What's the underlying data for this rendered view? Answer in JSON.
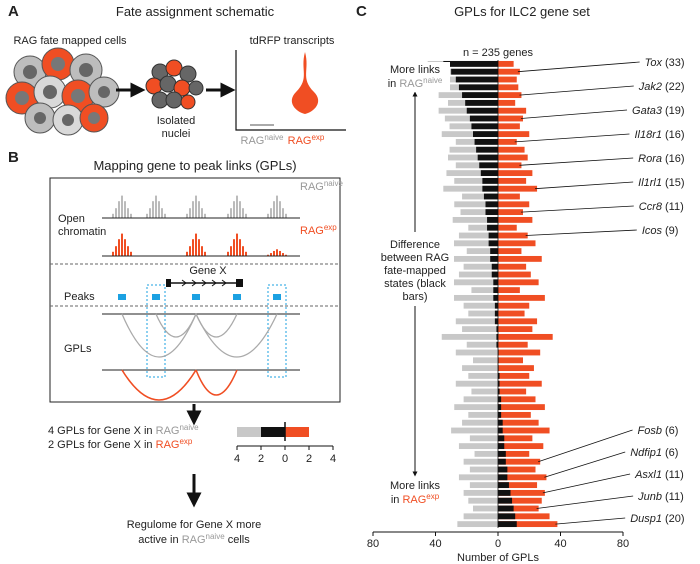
{
  "panel_a": {
    "letter": "A",
    "title": "Fate assignment schematic",
    "cells_label": "RAG fate mapped cells",
    "nuclei_label": [
      "Isolated",
      "nuclei"
    ],
    "plot_title": "tdRFP transcripts",
    "group_naive": {
      "base": "RAG",
      "sup": "naive"
    },
    "group_exp": {
      "base": "RAG",
      "sup": "exp"
    }
  },
  "panel_b": {
    "letter": "B",
    "title": "Mapping gene to peak links (GPLs)",
    "open_chromatin": [
      "Open",
      "chromatin"
    ],
    "track_naive": {
      "base": "RAG",
      "sup": "naive"
    },
    "track_exp": {
      "base": "RAG",
      "sup": "exp"
    },
    "gene": "Gene X",
    "peaks": "Peaks",
    "gpls": "GPLs",
    "summary_naive": {
      "text": "4 GPLs for Gene X in ",
      "base": "RAG",
      "sup": "naive"
    },
    "summary_exp": {
      "text": "2 GPLs for Gene X in ",
      "base": "RAG",
      "sup": "exp"
    },
    "mini_chart": {
      "naive": 4,
      "exp": 2,
      "difference": 2,
      "xlim": [
        -4,
        4
      ],
      "xticks": [
        {
          "value": -4,
          "label": "4"
        },
        {
          "value": -2,
          "label": "2"
        },
        0,
        2,
        4
      ]
    },
    "conclusion": {
      "line1": "Regulome for Gene X more",
      "text": "active in ",
      "base": "RAG",
      "sup": "naive",
      "tail": " cells"
    }
  },
  "chart_data": {
    "type": "diverging_bar",
    "letter": "C",
    "title": "GPLs for ILC2 gene set",
    "annotation": "n = 235 genes",
    "xlabel": "Number of GPLs",
    "note_top": {
      "line1": "More links",
      "text": "in ",
      "base": "RAG",
      "sup": "naive"
    },
    "note_middle": [
      "Difference",
      "between RAG",
      "fate-mapped",
      "states (black",
      "bars)"
    ],
    "note_bottom": {
      "line1": "More links",
      "text": "in ",
      "base": "RAG",
      "sup": "exp"
    },
    "xlim": [
      -80,
      80
    ],
    "xticks": [
      {
        "value": -80,
        "label": "80"
      },
      {
        "value": -40,
        "label": "40"
      },
      0,
      40,
      80
    ],
    "colors": {
      "naive": "#c8c8c8",
      "exp": "#f04e23",
      "difference": "#111111"
    },
    "naive_counts": [
      45,
      44,
      39,
      38,
      38,
      32,
      38,
      34,
      31,
      36,
      27,
      31,
      32,
      27,
      33,
      28,
      35,
      23,
      28,
      24,
      29,
      19,
      25,
      30,
      20,
      33,
      22,
      25,
      29,
      17,
      33,
      22,
      19,
      27,
      23,
      36,
      20,
      27,
      16,
      23,
      19,
      27,
      17,
      22,
      28,
      19,
      23,
      30,
      18,
      25,
      15,
      22,
      18,
      25,
      18,
      22,
      19,
      16,
      22,
      26
    ],
    "exp_counts": [
      10,
      14,
      12,
      13,
      15,
      11,
      18,
      16,
      14,
      20,
      12,
      17,
      19,
      15,
      22,
      18,
      25,
      14,
      20,
      16,
      22,
      12,
      19,
      24,
      15,
      28,
      18,
      21,
      26,
      14,
      30,
      20,
      17,
      25,
      22,
      35,
      19,
      27,
      16,
      23,
      20,
      28,
      18,
      24,
      30,
      21,
      26,
      33,
      22,
      29,
      20,
      27,
      24,
      31,
      25,
      30,
      28,
      26,
      33,
      38
    ],
    "difference": [
      35,
      30,
      27,
      25,
      23,
      21,
      20,
      18,
      17,
      16,
      15,
      14,
      13,
      12,
      11,
      10,
      10,
      9,
      8,
      8,
      7,
      7,
      6,
      6,
      5,
      5,
      4,
      4,
      3,
      3,
      3,
      2,
      2,
      2,
      1,
      1,
      1,
      0,
      0,
      0,
      -1,
      -1,
      -1,
      -2,
      -2,
      -2,
      -3,
      -3,
      -4,
      -4,
      -5,
      -5,
      -6,
      -6,
      -7,
      -8,
      -9,
      -10,
      -11,
      -12
    ],
    "genes_top": [
      {
        "name": "Tox",
        "count": "(33)"
      },
      {
        "name": "Jak2",
        "count": "(22)"
      },
      {
        "name": "Gata3",
        "count": "(19)"
      },
      {
        "name": "Il18r1",
        "count": "(16)"
      },
      {
        "name": "Rora",
        "count": "(16)"
      },
      {
        "name": "Il1rl1",
        "count": "(15)"
      },
      {
        "name": "Ccr8",
        "count": "(11)"
      },
      {
        "name": "Icos",
        "count": "(9)"
      }
    ],
    "genes_bottom": [
      {
        "name": "Fosb",
        "count": "(6)"
      },
      {
        "name": "Ndfip1",
        "count": "(6)"
      },
      {
        "name": "Asxl1",
        "count": "(11)"
      },
      {
        "name": "Junb",
        "count": "(11)"
      },
      {
        "name": "Dusp1",
        "count": "(20)"
      }
    ]
  }
}
